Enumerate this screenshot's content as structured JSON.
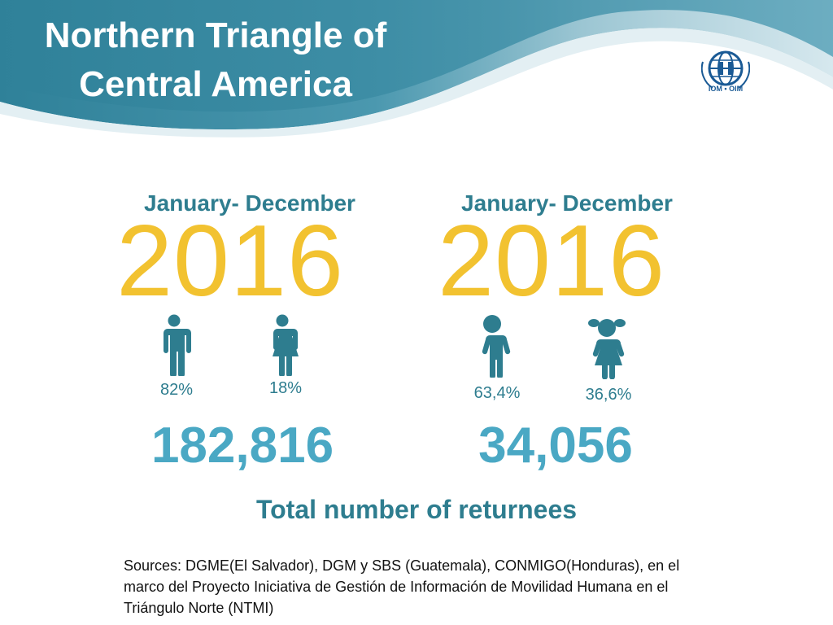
{
  "title": "Northern Triangle of Central America",
  "logo": {
    "text": "IOM • OIM"
  },
  "panels": [
    {
      "period": "January- December",
      "year": "2016",
      "figures": [
        {
          "icon": "man-icon",
          "percent": "82%"
        },
        {
          "icon": "woman-icon",
          "percent": "18%"
        }
      ],
      "total": "182,816"
    },
    {
      "period": "January- December",
      "year": "2016",
      "figures": [
        {
          "icon": "boy-icon",
          "percent": "63,4%"
        },
        {
          "icon": "girl-icon",
          "percent": "36,6%"
        }
      ],
      "total": "34,056"
    }
  ],
  "caption": "Total number of returnees",
  "sources": "Sources: DGME(El Salvador), DGM y SBS (Guatemala), CONMIGO(Honduras), en el marco del Proyecto Iniciativa de Gestión de Información de Movilidad Humana en el Triángulo Norte (NTMI)",
  "colors": {
    "header": "#3f8fa7",
    "year": "#f2c230",
    "icon": "#2e7d8f",
    "total": "#4aa8c4"
  }
}
